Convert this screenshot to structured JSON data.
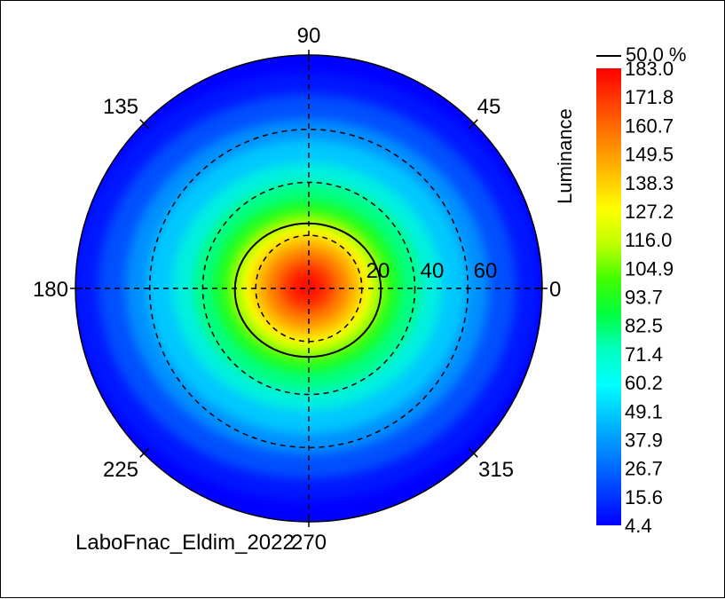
{
  "chart_data": {
    "type": "heatmap",
    "projection": "polar",
    "caption": "LaboFnac_Eldim_2022",
    "angle_labels": [
      {
        "angle": 0,
        "text": "0"
      },
      {
        "angle": 45,
        "text": "45"
      },
      {
        "angle": 90,
        "text": "90"
      },
      {
        "angle": 135,
        "text": "135"
      },
      {
        "angle": 180,
        "text": "180"
      },
      {
        "angle": 225,
        "text": "225"
      },
      {
        "angle": 270,
        "text": "270"
      },
      {
        "angle": 315,
        "text": "315"
      }
    ],
    "radial_rings": [
      20,
      40,
      60
    ],
    "radial_labels": [
      "20",
      "40",
      "60"
    ],
    "radial_max": 88,
    "colorbar": {
      "title": "Luminance",
      "contour_label": "50.0 %",
      "min": 4.4,
      "max": 183.0,
      "tick_labels": [
        "183.0",
        "171.8",
        "160.7",
        "149.5",
        "138.3",
        "127.2",
        "116.0",
        "104.9",
        "93.7",
        "82.5",
        "71.4",
        "60.2",
        "49.1",
        "37.9",
        "26.7",
        "15.6",
        "4.4"
      ],
      "colors": [
        "#ff0000",
        "#ff4000",
        "#ff8000",
        "#ffbf00",
        "#ffff00",
        "#bfff00",
        "#40ff00",
        "#00ff40",
        "#00ffbf",
        "#00ffff",
        "#00bfff",
        "#0080ff",
        "#0040ff",
        "#0000ff"
      ]
    },
    "peak": {
      "value": 183.0,
      "theta_deg": 0,
      "offset_x": -2,
      "offset_y": -4
    },
    "contour_50pct": {
      "level": 91.5,
      "theta_half_width": 17
    },
    "grid": true
  }
}
